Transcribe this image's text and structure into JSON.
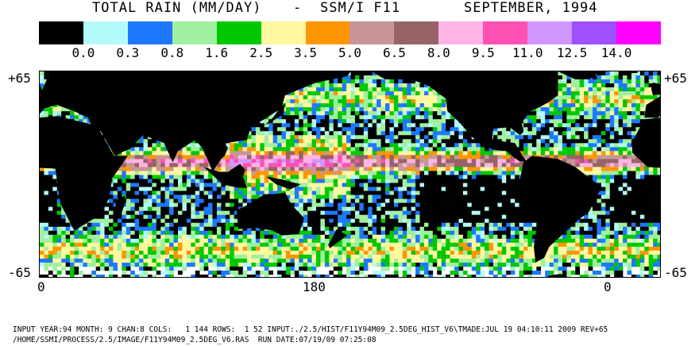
{
  "title": {
    "product": "TOTAL RAIN (MM/DAY)",
    "separator": "-",
    "instrument": "SSM/I F11",
    "period": "SEPTEMBER, 1994"
  },
  "legend": {
    "colors": [
      "#000000",
      "#b4faf8",
      "#1e78ff",
      "#a0f0a0",
      "#00c800",
      "#fff8a0",
      "#ff9600",
      "#c89696",
      "#966464",
      "#ffb4e6",
      "#ff50b4",
      "#d296ff",
      "#a050ff",
      "#ff00ff"
    ],
    "labels": [
      "0.0",
      "0.3",
      "0.8",
      "1.6",
      "2.5",
      "3.5",
      "5.0",
      "6.5",
      "8.0",
      "9.5",
      "11.0",
      "12.5",
      "14.0"
    ]
  },
  "axes": {
    "lat_top_left": "+65",
    "lat_top_right": "+65",
    "lat_bottom_left": "-65",
    "lat_bottom_right": "-65",
    "lon_left": "0",
    "lon_center": "180",
    "lon_right": "0"
  },
  "map": {
    "land_color": "#000000",
    "no_data_color": "#ffffff"
  },
  "footer": {
    "line1": "INPUT YEAR:94 MONTH: 9 CHAN:8 COLS:   1 144 ROWS:  1 52 INPUT:./2.5/HIST/F11Y94M09_2.5DEG_HIST_V6\\TMADE:JUL 19 04:10:11 2009 REV+65",
    "line2": "/HOME/SSMI/PROCESS/2.5/IMAGE/F11Y94M09_2.5DEG_V6.RAS  RUN DATE:07/19/09 07:25:08"
  }
}
